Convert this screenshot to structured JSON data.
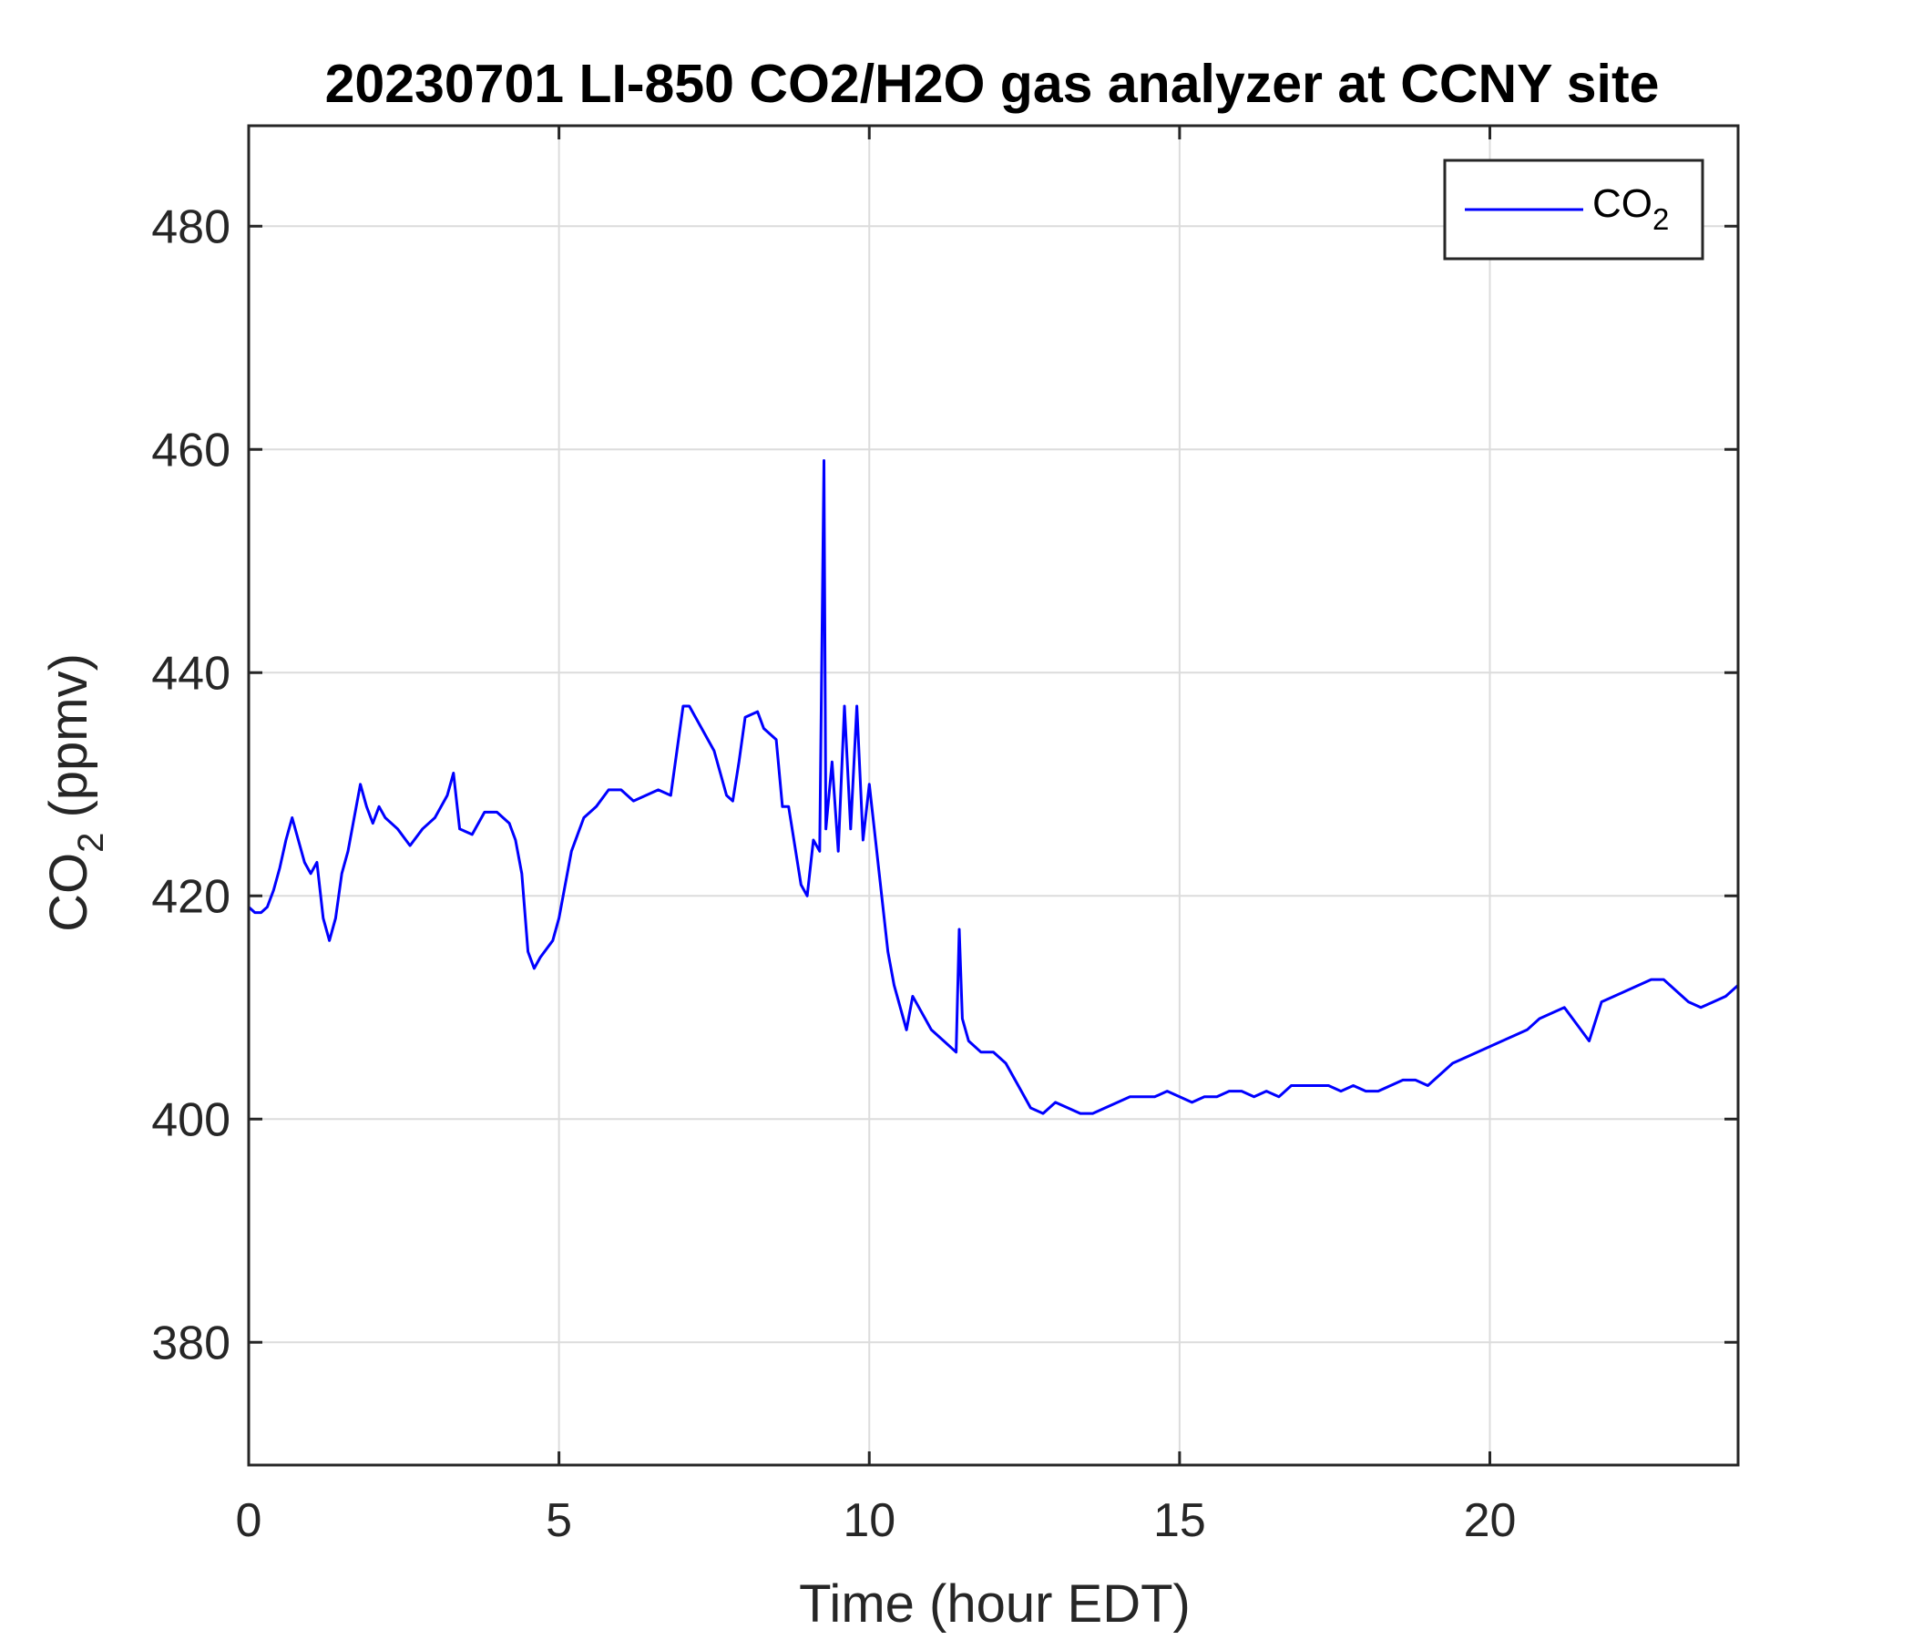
{
  "chart_data": {
    "type": "line",
    "title": "20230701 LI-850 CO2/H2O gas analyzer at CCNY site",
    "xlabel": "Time (hour EDT)",
    "ylabel": {
      "base": "CO",
      "sub": "2",
      "rest": " (ppmv)"
    },
    "xlim": [
      0,
      24
    ],
    "ylim": [
      369,
      489
    ],
    "xticks": [
      0,
      5,
      10,
      15,
      20
    ],
    "yticks": [
      380,
      400,
      420,
      440,
      460,
      480
    ],
    "grid": true,
    "legend": {
      "position": "top-right",
      "color": "#0000ff"
    },
    "series": [
      {
        "name": {
          "base": "CO",
          "sub": "2"
        },
        "color": "#0000ff",
        "x": [
          0,
          0.1,
          0.2,
          0.3,
          0.4,
          0.5,
          0.6,
          0.7,
          0.8,
          0.9,
          1.0,
          1.1,
          1.2,
          1.3,
          1.4,
          1.5,
          1.6,
          1.7,
          1.8,
          1.9,
          2.0,
          2.1,
          2.2,
          2.4,
          2.6,
          2.8,
          3.0,
          3.2,
          3.3,
          3.4,
          3.6,
          3.8,
          4.0,
          4.2,
          4.3,
          4.4,
          4.5,
          4.6,
          4.7,
          4.9,
          5.0,
          5.2,
          5.4,
          5.6,
          5.8,
          6.0,
          6.2,
          6.4,
          6.6,
          6.8,
          7.0,
          7.1,
          7.3,
          7.5,
          7.7,
          7.8,
          7.9,
          8.0,
          8.2,
          8.3,
          8.5,
          8.6,
          8.7,
          8.8,
          8.9,
          9.0,
          9.1,
          9.2,
          9.27,
          9.3,
          9.4,
          9.5,
          9.6,
          9.7,
          9.8,
          9.9,
          10.0,
          10.1,
          10.2,
          10.3,
          10.4,
          10.5,
          10.6,
          10.7,
          10.8,
          11.0,
          11.2,
          11.4,
          11.45,
          11.5,
          11.6,
          11.8,
          12.0,
          12.2,
          12.4,
          12.6,
          12.8,
          13.0,
          13.2,
          13.4,
          13.6,
          13.8,
          14.0,
          14.2,
          14.4,
          14.6,
          14.8,
          15.0,
          15.2,
          15.4,
          15.6,
          15.8,
          16.0,
          16.2,
          16.4,
          16.6,
          16.8,
          17.0,
          17.2,
          17.4,
          17.6,
          17.8,
          18.0,
          18.2,
          18.4,
          18.6,
          18.8,
          19.0,
          19.2,
          19.4,
          19.6,
          19.8,
          20.0,
          20.2,
          20.4,
          20.6,
          20.8,
          21.0,
          21.2,
          21.4,
          21.6,
          21.8,
          22.0,
          22.2,
          22.4,
          22.6,
          22.8,
          23.0,
          23.2,
          23.4,
          23.6,
          23.8,
          24.0
        ],
        "values": [
          419,
          418.5,
          418.5,
          419,
          420.5,
          422.5,
          425,
          427,
          425,
          423,
          422,
          423,
          418,
          416,
          418,
          422,
          424,
          427,
          430,
          428,
          426.5,
          428,
          427,
          426,
          424.5,
          426,
          427,
          429,
          431,
          426,
          425.5,
          427.5,
          427.5,
          426.5,
          425,
          422,
          415,
          413.5,
          414.5,
          416,
          418,
          424,
          427,
          428,
          429.5,
          429.5,
          428.5,
          429,
          429.5,
          429,
          437,
          437,
          435,
          433,
          429,
          428.5,
          432,
          436,
          436.5,
          435,
          434,
          428,
          428,
          424.5,
          421,
          420,
          425,
          424,
          459,
          426,
          432,
          424,
          437,
          426,
          437,
          425,
          430,
          425,
          420,
          415,
          412,
          410,
          408,
          411,
          410,
          408,
          407,
          406,
          417,
          409,
          407,
          406,
          406,
          405,
          403,
          401,
          400.5,
          401.5,
          401,
          400.5,
          400.5,
          401,
          401.5,
          402,
          402,
          402,
          402.5,
          402,
          401.5,
          402,
          402,
          402.5,
          402.5,
          402,
          402.5,
          402,
          403,
          403,
          403,
          403,
          402.5,
          403,
          402.5,
          402.5,
          403,
          403.5,
          403.5,
          403,
          404,
          405,
          405.5,
          406,
          406.5,
          407,
          407.5,
          408,
          409,
          409.5,
          410,
          408.5,
          407,
          410.5,
          411,
          411.5,
          412,
          412.5,
          412.5,
          411.5,
          410.5,
          410,
          410.5,
          411,
          412
        ]
      }
    ]
  }
}
